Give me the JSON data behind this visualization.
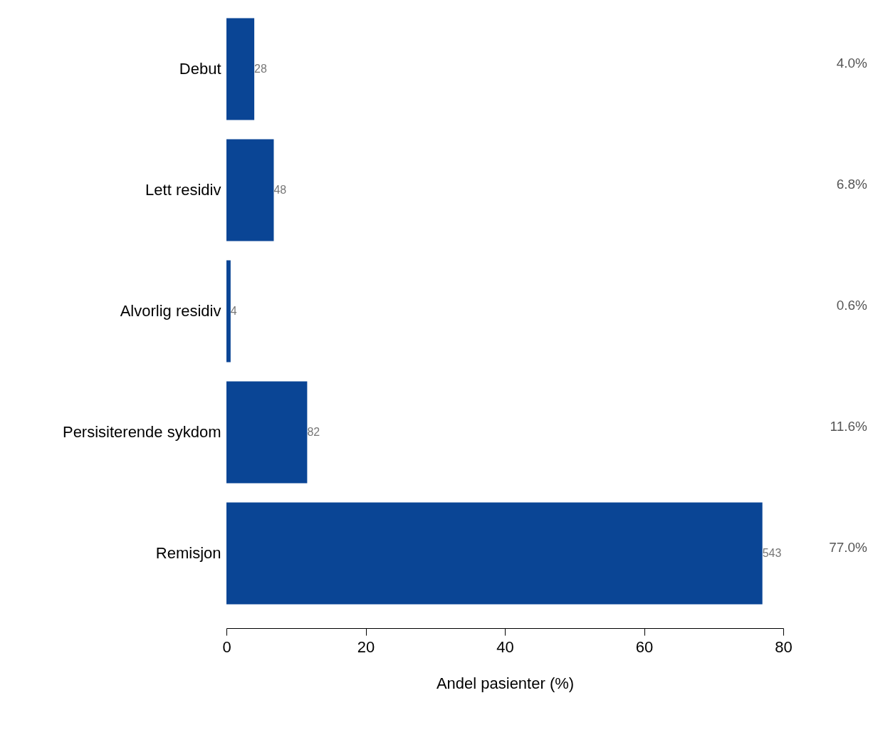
{
  "chart_data": {
    "type": "bar",
    "orientation": "horizontal",
    "xlabel": "Andel pasienter (%)",
    "categories": [
      "Debut",
      "Lett residiv",
      "Alvorlig residiv",
      "Persisiterende sykdom",
      "Remisjon"
    ],
    "values": [
      4.0,
      6.8,
      0.6,
      11.6,
      77.0
    ],
    "value_labels": [
      "4.0%",
      "6.8%",
      "0.6%",
      "11.6%",
      "77.0%"
    ],
    "color": "#0a4595",
    "xlim": [
      0,
      80
    ],
    "xticks": [
      0,
      20,
      40,
      60,
      80
    ],
    "grid": false,
    "annotations": [
      {
        "text": "28",
        "x": 4.0,
        "y": "Debut"
      },
      {
        "text": "48",
        "x": 6.8,
        "y": "Lett residiv"
      },
      {
        "text": "4",
        "x": 0.6,
        "y": "Alvorlig residiv"
      },
      {
        "text": "82",
        "x": 11.6,
        "y": "Persisiterende sykdom"
      },
      {
        "text": "543",
        "x": 77.0,
        "y": "Remisjon"
      }
    ]
  }
}
